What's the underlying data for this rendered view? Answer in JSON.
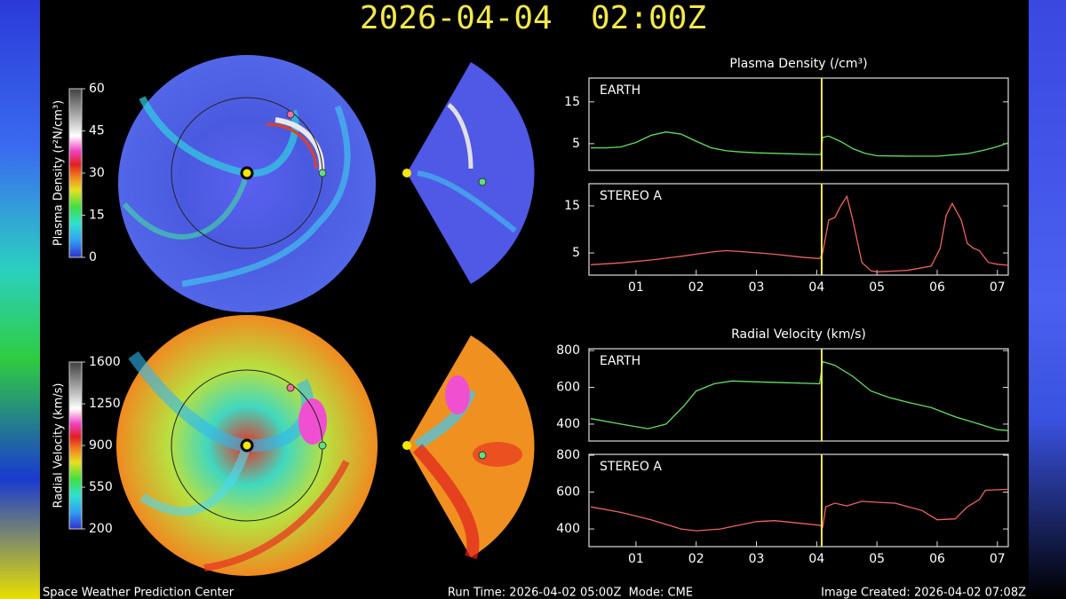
{
  "title": "2026-04-04  02:00Z",
  "footer": {
    "left": "Space Weather Prediction Center",
    "center": "Run Time: 2026-04-02 05:00Z  Mode: CME",
    "right": "Image Created: 2026-04-02 07:08Z"
  },
  "colorbars": [
    {
      "label": "Plasma Density (r²N/cm³)",
      "lim": [
        0,
        60
      ],
      "ticks": [
        0,
        15,
        30,
        45,
        60
      ]
    },
    {
      "label": "Radial Velocity (km/s)",
      "lim": [
        200,
        1600
      ],
      "ticks": [
        200,
        550,
        900,
        1250,
        1600
      ]
    }
  ],
  "chart_data": [
    {
      "type": "line",
      "title": "Plasma Density (/cm³)",
      "xlim": [
        0.22,
        7.18
      ],
      "ylim": [
        -1.4,
        20.7
      ],
      "yticks": [
        5,
        15
      ],
      "marker_x": 4.083,
      "marker_color": "#f2e84a",
      "x": [
        0.25,
        0.5,
        0.75,
        1.0,
        1.25,
        1.5,
        1.75,
        2.0,
        2.25,
        2.5,
        2.75,
        3.0,
        3.5,
        4.0,
        4.07,
        4.1,
        4.2,
        4.4,
        4.6,
        4.8,
        5.0,
        5.5,
        6.0,
        6.5,
        6.8,
        7.0,
        7.18
      ],
      "series": [
        {
          "name": "EARTH",
          "color": "#62e062",
          "values": [
            4,
            4,
            4.2,
            5.3,
            7,
            7.8,
            7.3,
            5.6,
            4,
            3.3,
            3,
            2.8,
            2.6,
            2.4,
            2.4,
            6.5,
            6.8,
            5.5,
            3.8,
            2.7,
            2.1,
            2,
            2,
            2.6,
            3.5,
            4.3,
            5.2
          ]
        }
      ]
    },
    {
      "type": "line",
      "xlim": [
        0.22,
        7.18
      ],
      "ylim": [
        0.3,
        19.7
      ],
      "yticks": [
        5,
        15
      ],
      "marker_x": 4.083,
      "marker_color": "#f2e84a",
      "xticks": [
        {
          "value": 1,
          "label": "01"
        },
        {
          "value": 2,
          "label": "02"
        },
        {
          "value": 3,
          "label": "03"
        },
        {
          "value": 4,
          "label": "04"
        },
        {
          "value": 5,
          "label": "05"
        },
        {
          "value": 6,
          "label": "06"
        },
        {
          "value": 7,
          "label": "07"
        }
      ],
      "x": [
        0.25,
        0.75,
        1.25,
        1.75,
        2.25,
        2.5,
        2.75,
        3.25,
        3.75,
        4.05,
        4.1,
        4.2,
        4.3,
        4.4,
        4.5,
        4.6,
        4.75,
        4.9,
        5.0,
        5.5,
        5.9,
        6.05,
        6.15,
        6.25,
        6.4,
        6.5,
        6.6,
        6.7,
        6.85,
        7.0,
        7.18
      ],
      "series": [
        {
          "name": "STEREO A",
          "color": "#f06262",
          "values": [
            2.5,
            2.9,
            3.5,
            4.3,
            5.2,
            5.5,
            5.3,
            4.8,
            4.1,
            3.8,
            5,
            12,
            12.5,
            15,
            17,
            12,
            3,
            1.2,
            1,
            1.3,
            2.2,
            6,
            13,
            15.5,
            12,
            7,
            6,
            5.5,
            3,
            2.6,
            2.4
          ]
        }
      ]
    },
    {
      "type": "line",
      "title": "Radial Velocity (km/s)",
      "xlim": [
        0.22,
        7.18
      ],
      "ylim": [
        308,
        810
      ],
      "yticks": [
        400,
        600,
        800
      ],
      "marker_x": 4.083,
      "marker_color": "#f2e84a",
      "x": [
        0.25,
        0.75,
        1.2,
        1.5,
        1.8,
        2.0,
        2.3,
        2.6,
        3.0,
        3.5,
        4.05,
        4.1,
        4.3,
        4.6,
        4.9,
        5.2,
        5.5,
        5.9,
        6.3,
        6.7,
        7.0,
        7.18
      ],
      "series": [
        {
          "name": "EARTH",
          "color": "#62e062",
          "values": [
            430,
            400,
            375,
            400,
            500,
            580,
            620,
            635,
            630,
            625,
            620,
            740,
            720,
            660,
            580,
            545,
            520,
            490,
            440,
            400,
            370,
            365
          ]
        }
      ]
    },
    {
      "type": "line",
      "xlim": [
        0.22,
        7.18
      ],
      "ylim": [
        304,
        805
      ],
      "yticks": [
        400,
        600,
        800
      ],
      "marker_x": 4.083,
      "marker_color": "#f2e84a",
      "xticks": [
        {
          "value": 1,
          "label": "01"
        },
        {
          "value": 2,
          "label": "02"
        },
        {
          "value": 3,
          "label": "03"
        },
        {
          "value": 4,
          "label": "04"
        },
        {
          "value": 5,
          "label": "05"
        },
        {
          "value": 6,
          "label": "06"
        },
        {
          "value": 7,
          "label": "07"
        }
      ],
      "x": [
        0.25,
        0.75,
        1.25,
        1.75,
        2.0,
        2.4,
        3.0,
        3.3,
        3.75,
        4.05,
        4.1,
        4.15,
        4.3,
        4.5,
        4.75,
        5.0,
        5.3,
        5.75,
        6.0,
        6.3,
        6.5,
        6.7,
        6.8,
        7.18
      ],
      "series": [
        {
          "name": "STEREO A",
          "color": "#f06262",
          "values": [
            520,
            490,
            450,
            400,
            390,
            400,
            440,
            445,
            430,
            420,
            410,
            520,
            540,
            525,
            550,
            545,
            540,
            500,
            450,
            455,
            520,
            560,
            610,
            615
          ]
        }
      ]
    }
  ]
}
